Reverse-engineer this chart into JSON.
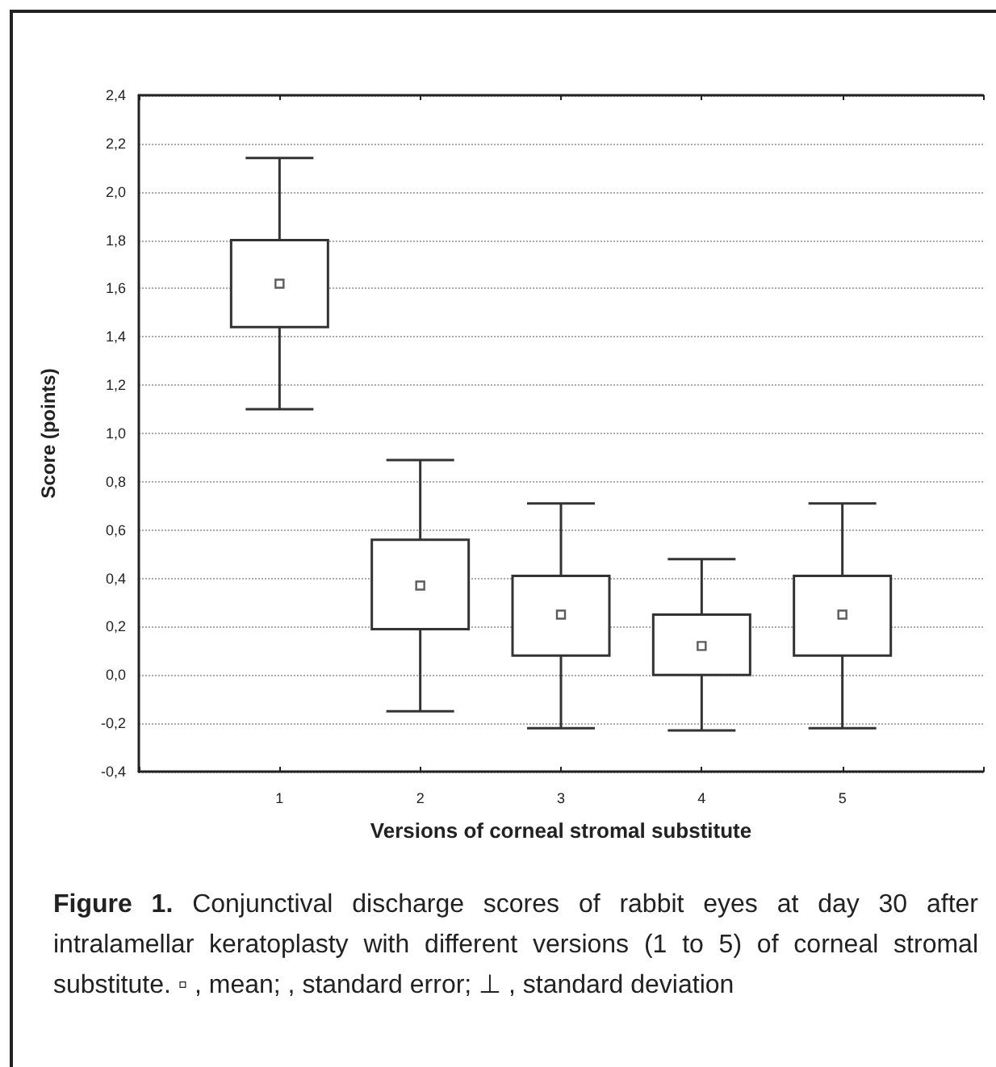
{
  "chart_data": {
    "type": "box",
    "xlabel": "Versions of corneal stromal substitute",
    "ylabel": "Score (points)",
    "categories": [
      null,
      "1",
      "2",
      "3",
      "4",
      "5",
      null
    ],
    "boxes": [
      null,
      {
        "low": 1.1,
        "q1": 1.44,
        "q3": 1.8,
        "high": 2.14,
        "mean": 1.62
      },
      {
        "low": -0.15,
        "q1": 0.19,
        "q3": 0.56,
        "high": 0.89,
        "mean": 0.37
      },
      {
        "low": -0.22,
        "q1": 0.08,
        "q3": 0.41,
        "high": 0.71,
        "mean": 0.25
      },
      {
        "low": -0.23,
        "q1": 0.0,
        "q3": 0.25,
        "high": 0.48,
        "mean": 0.12
      },
      {
        "low": -0.22,
        "q1": 0.08,
        "q3": 0.41,
        "high": 0.71,
        "mean": 0.25
      },
      null
    ],
    "color": "#333333",
    "marker": "square",
    "ylim": [
      -0.4,
      2.4
    ],
    "yticks": [
      {
        "value": -0.4,
        "label": "-0,4"
      },
      {
        "value": -0.2,
        "label": "-0,2"
      },
      {
        "value": 0,
        "label": "0,0"
      },
      {
        "value": 0.2,
        "label": "0,2"
      },
      {
        "value": 0.4,
        "label": "0,4"
      },
      {
        "value": 0.6,
        "label": "0,6"
      },
      {
        "value": 0.8,
        "label": "0,8"
      },
      {
        "value": 1.0,
        "label": "1,0"
      },
      {
        "value": 1.2,
        "label": "1,2"
      },
      {
        "value": 1.4,
        "label": "1,4"
      },
      {
        "value": 1.6,
        "label": "1,6"
      },
      {
        "value": 1.8,
        "label": "1,8"
      },
      {
        "value": 2.0,
        "label": "2,0"
      },
      {
        "value": 2.2,
        "label": "2,2"
      },
      {
        "value": 2.4,
        "label": "2,4"
      }
    ],
    "grid": "y",
    "annotations": [
      "Figure 1.",
      "Conjunctival discharge scores of rabbit eyes at day 30 after intralamellar keratoplasty with different versions (1 to 5) of corneal stromal substitute. ▫ , mean;    , standard error; ⊥ , standard deviation"
    ]
  }
}
